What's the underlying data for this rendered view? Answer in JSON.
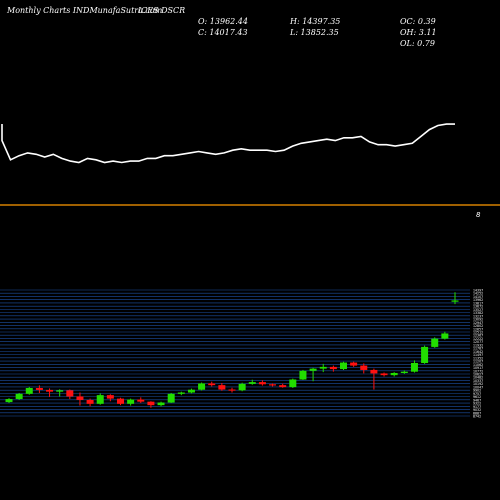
{
  "header": {
    "site": "Monthly Charts INDMunafaSutra.com",
    "ticker": "ICES DSCR",
    "open": "O: 13962.44",
    "high": "H: 14397.35",
    "close": "C: 14017.43",
    "low": "L: 13852.35",
    "oc": "OC: 0.39",
    "oh": "OH: 3.11",
    "ol": "OL: 0.79"
  },
  "colors": {
    "up": "#22dd00",
    "down": "#ff1111",
    "line": "#ffffff",
    "separator": "#ff9900",
    "grid": "#1d4fa3",
    "background": "#000000"
  },
  "chart_data": [
    {
      "type": "line",
      "description_role": "upper panel (unlabelled indicator)",
      "y": [
        60,
        46,
        49,
        51,
        50,
        48,
        50,
        47,
        45,
        44,
        47,
        46,
        44,
        45,
        44,
        45,
        45,
        47,
        47,
        49,
        49,
        50,
        51,
        52,
        51,
        50,
        51,
        53,
        54,
        53,
        53,
        53,
        52,
        53,
        56,
        58,
        59,
        60,
        61,
        60,
        62,
        62,
        63,
        59,
        57,
        57,
        56,
        57,
        58,
        63,
        68,
        71,
        72,
        72
      ]
    },
    {
      "type": "candlestick",
      "series_label": "8",
      "candles": [
        {
          "o": 9340,
          "h": 9520,
          "l": 9300,
          "c": 9480
        },
        {
          "o": 9480,
          "h": 9760,
          "l": 9440,
          "c": 9720
        },
        {
          "o": 9720,
          "h": 10040,
          "l": 9680,
          "c": 9990
        },
        {
          "o": 9990,
          "h": 10110,
          "l": 9760,
          "c": 9900
        },
        {
          "o": 9900,
          "h": 9970,
          "l": 9580,
          "c": 9820
        },
        {
          "o": 9820,
          "h": 9930,
          "l": 9600,
          "c": 9880
        },
        {
          "o": 9880,
          "h": 9920,
          "l": 9480,
          "c": 9600
        },
        {
          "o": 9600,
          "h": 9780,
          "l": 9180,
          "c": 9440
        },
        {
          "o": 9440,
          "h": 9500,
          "l": 9140,
          "c": 9260
        },
        {
          "o": 9260,
          "h": 9740,
          "l": 9220,
          "c": 9660
        },
        {
          "o": 9660,
          "h": 9700,
          "l": 9380,
          "c": 9500
        },
        {
          "o": 9500,
          "h": 9540,
          "l": 9200,
          "c": 9260
        },
        {
          "o": 9260,
          "h": 9500,
          "l": 9180,
          "c": 9460
        },
        {
          "o": 9460,
          "h": 9560,
          "l": 9300,
          "c": 9360
        },
        {
          "o": 9360,
          "h": 9380,
          "l": 9080,
          "c": 9200
        },
        {
          "o": 9200,
          "h": 9360,
          "l": 9140,
          "c": 9320
        },
        {
          "o": 9320,
          "h": 9760,
          "l": 9300,
          "c": 9720
        },
        {
          "o": 9720,
          "h": 9820,
          "l": 9660,
          "c": 9780
        },
        {
          "o": 9780,
          "h": 9960,
          "l": 9740,
          "c": 9910
        },
        {
          "o": 9910,
          "h": 10240,
          "l": 9870,
          "c": 10200
        },
        {
          "o": 10200,
          "h": 10280,
          "l": 10060,
          "c": 10120
        },
        {
          "o": 10120,
          "h": 10220,
          "l": 9860,
          "c": 9920
        },
        {
          "o": 9920,
          "h": 10000,
          "l": 9780,
          "c": 9880
        },
        {
          "o": 9880,
          "h": 10230,
          "l": 9840,
          "c": 10180
        },
        {
          "o": 10180,
          "h": 10370,
          "l": 10140,
          "c": 10260
        },
        {
          "o": 10260,
          "h": 10340,
          "l": 10100,
          "c": 10160
        },
        {
          "o": 10160,
          "h": 10200,
          "l": 10060,
          "c": 10120
        },
        {
          "o": 10120,
          "h": 10190,
          "l": 10000,
          "c": 10030
        },
        {
          "o": 10030,
          "h": 10420,
          "l": 9990,
          "c": 10380
        },
        {
          "o": 10380,
          "h": 10820,
          "l": 10360,
          "c": 10780
        },
        {
          "o": 10780,
          "h": 10920,
          "l": 10300,
          "c": 10880
        },
        {
          "o": 10880,
          "h": 11100,
          "l": 10720,
          "c": 10960
        },
        {
          "o": 10960,
          "h": 11020,
          "l": 10740,
          "c": 10860
        },
        {
          "o": 10860,
          "h": 11200,
          "l": 10820,
          "c": 11160
        },
        {
          "o": 11160,
          "h": 11200,
          "l": 10960,
          "c": 11020
        },
        {
          "o": 11020,
          "h": 11120,
          "l": 10660,
          "c": 10820
        },
        {
          "o": 10820,
          "h": 10880,
          "l": 9920,
          "c": 10660
        },
        {
          "o": 10660,
          "h": 10700,
          "l": 10520,
          "c": 10580
        },
        {
          "o": 10580,
          "h": 10720,
          "l": 10520,
          "c": 10680
        },
        {
          "o": 10680,
          "h": 10800,
          "l": 10640,
          "c": 10740
        },
        {
          "o": 10740,
          "h": 11260,
          "l": 10700,
          "c": 11140
        },
        {
          "o": 11140,
          "h": 11940,
          "l": 11100,
          "c": 11880
        },
        {
          "o": 11880,
          "h": 12320,
          "l": 11840,
          "c": 12260
        },
        {
          "o": 12260,
          "h": 12580,
          "l": 12220,
          "c": 12500
        },
        {
          "o": 13962.44,
          "h": 14397.35,
          "l": 13852.35,
          "c": 14017.43
        }
      ],
      "ylim": [
        8700,
        14500
      ],
      "tick_labels": [
        "14397",
        "14252",
        "14107",
        "13962",
        "13817",
        "13672",
        "13527",
        "13382",
        "13237",
        "13092",
        "12947",
        "12802",
        "12657",
        "12512",
        "12367",
        "12222",
        "12077",
        "11932",
        "11787",
        "11642",
        "11497",
        "11352",
        "11207",
        "11062",
        "10917",
        "10772",
        "10627",
        "10482",
        "10337",
        "10192",
        "10047",
        "9902",
        "9757",
        "9612",
        "9467",
        "9322",
        "9177",
        "9032",
        "8887",
        "8742"
      ]
    }
  ]
}
